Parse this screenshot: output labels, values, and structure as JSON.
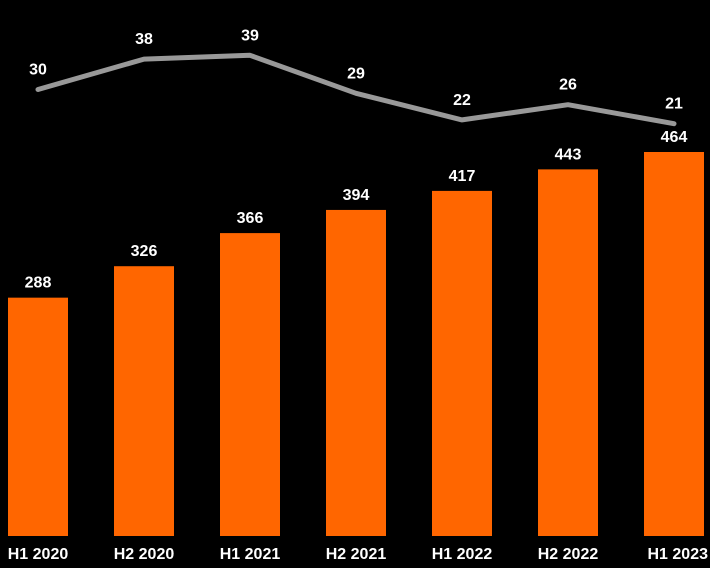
{
  "chart_data": {
    "type": "bar",
    "categories": [
      "H1 2020",
      "H2 2020",
      "H1 2021",
      "H2 2021",
      "H1 2022",
      "H2 2022",
      "H1 2023"
    ],
    "series": [
      {
        "type": "bar",
        "values": [
          288,
          326,
          366,
          394,
          417,
          443,
          464
        ],
        "color": "#ff6600"
      },
      {
        "type": "line",
        "values": [
          30,
          38,
          39,
          29,
          22,
          26,
          21
        ],
        "color": "#999999"
      }
    ],
    "title": "",
    "xlabel": "",
    "ylabel": "",
    "legend": "none",
    "grid": false
  },
  "colors": {
    "background": "#000000",
    "label_text": "#ffffff"
  }
}
